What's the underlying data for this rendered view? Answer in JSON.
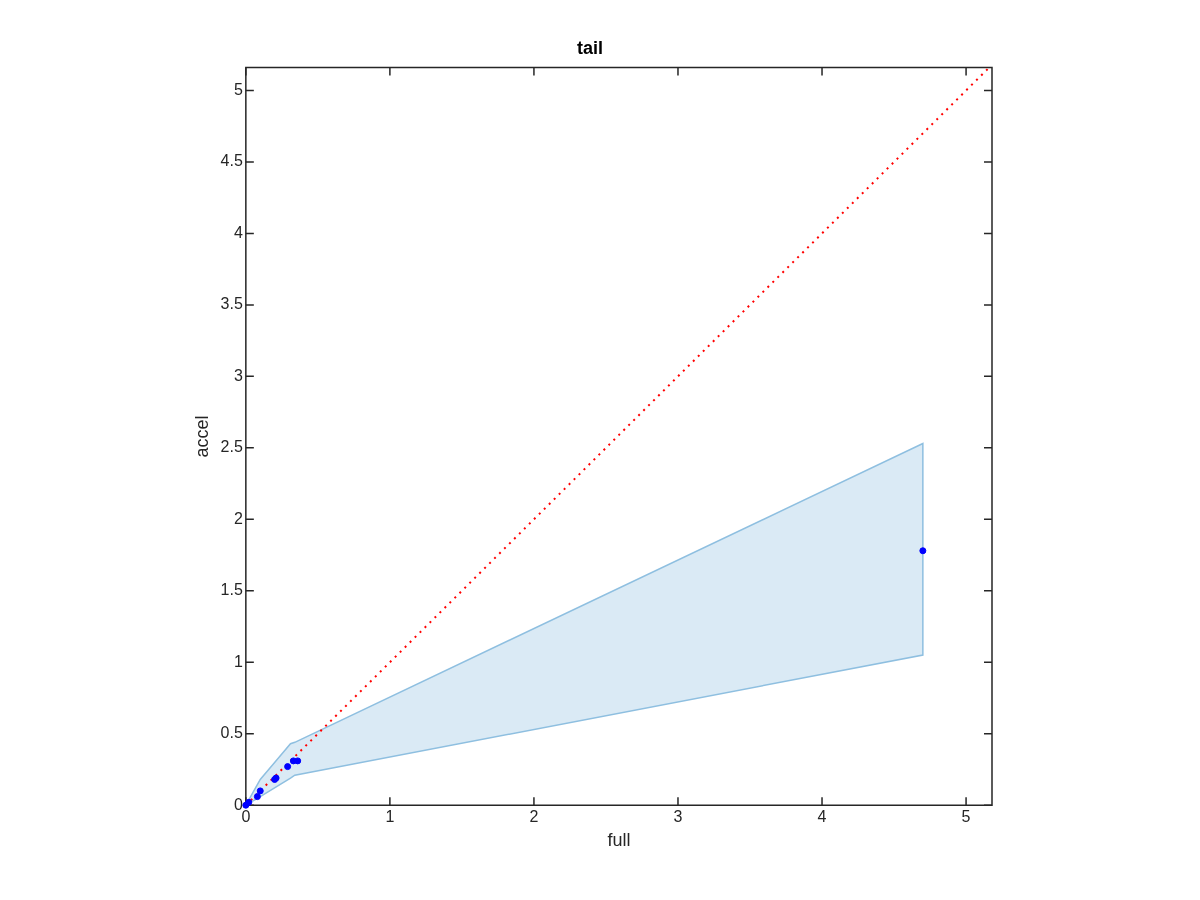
{
  "chart_data": {
    "type": "scatter",
    "title": "tail",
    "xlabel": "full",
    "ylabel": "accel",
    "xlim": [
      0,
      5.18
    ],
    "ylim": [
      0,
      5.16
    ],
    "xticks": [
      0,
      1,
      2,
      3,
      4,
      5
    ],
    "yticks": [
      0,
      0.5,
      1,
      1.5,
      2,
      2.5,
      3,
      3.5,
      4,
      4.5,
      5
    ],
    "grid": false,
    "legend": false,
    "series": [
      {
        "type": "area",
        "color": "#8ebfe0",
        "x": [
          0,
          0.1,
          0.31,
          0.34,
          4.7
        ],
        "values": [
          null,
          null,
          null,
          null,
          null
        ],
        "lower": [
          0,
          0.06,
          0.19,
          0.21,
          1.05
        ],
        "upper": [
          0,
          0.18,
          0.43,
          0.44,
          2.53
        ]
      },
      {
        "type": "line",
        "color": "#ff0000",
        "line_style": "dotted",
        "marker": "none",
        "x": [
          0,
          5.16
        ],
        "values": [
          0,
          5.16
        ]
      },
      {
        "color": "#0000ff",
        "marker": "circle",
        "x": [
          0,
          0.02,
          0.08,
          0.1,
          0.2,
          0.21,
          0.29,
          0.33,
          0.36,
          4.7
        ],
        "values": [
          0,
          0.02,
          0.06,
          0.1,
          0.18,
          0.19,
          0.27,
          0.31,
          0.31,
          1.78
        ]
      }
    ]
  }
}
